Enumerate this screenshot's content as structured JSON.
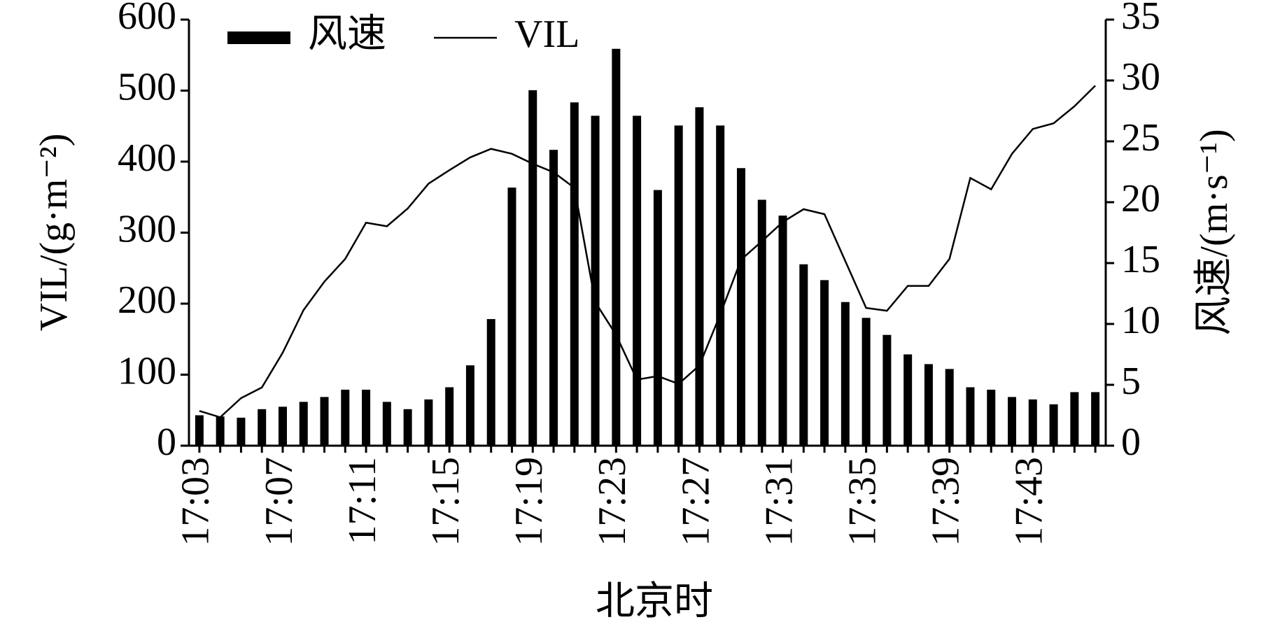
{
  "chart_data": {
    "type": "bar",
    "x_label": "北京时",
    "y_label": "VIL/(g·m⁻²)",
    "y2_label": "风速/(m·s⁻¹)",
    "categories": [
      "17:03",
      null,
      null,
      null,
      "17:07",
      null,
      null,
      null,
      "17:11",
      null,
      null,
      null,
      "17:15",
      null,
      null,
      null,
      "17:19",
      null,
      null,
      null,
      "17:23",
      null,
      null,
      null,
      "17:27",
      null,
      null,
      null,
      "17:31",
      null,
      null,
      null,
      "17:35",
      null,
      null,
      null,
      "17:39",
      null,
      null,
      null,
      "17:43",
      null,
      null,
      null
    ],
    "series": [
      {
        "name": "风速",
        "type": "bar",
        "axis": "y2",
        "color": "#000000",
        "values": [
          2.5,
          2.4,
          2.3,
          3.0,
          3.2,
          3.6,
          4.0,
          4.6,
          4.6,
          3.6,
          3.0,
          3.8,
          4.8,
          6.6,
          10.4,
          21.2,
          29.2,
          24.3,
          28.2,
          27.1,
          32.6,
          27.1,
          21.0,
          26.3,
          27.8,
          26.3,
          22.8,
          20.2,
          18.9,
          14.9,
          13.6,
          11.8,
          10.5,
          9.1,
          7.5,
          6.7,
          6.3,
          4.8,
          4.6,
          4.0,
          3.8,
          3.4,
          4.4,
          4.4
        ]
      },
      {
        "name": "VIL",
        "type": "line",
        "color": "#000000",
        "values": [
          49,
          40,
          67,
          82,
          131,
          191,
          231,
          263,
          314,
          309,
          334,
          369,
          388,
          406,
          418,
          411,
          397,
          385,
          363,
          202,
          156,
          93,
          98,
          87,
          113,
          185,
          262,
          288,
          315,
          333,
          326,
          260,
          194,
          190,
          225,
          225,
          263,
          377,
          361,
          411,
          446,
          454,
          478,
          507
        ]
      }
    ],
    "ylim": [
      0,
      600
    ],
    "yticks": [
      0,
      100,
      200,
      300,
      400,
      500,
      600
    ],
    "y2lim": [
      0,
      35
    ],
    "y2ticks": [
      0,
      5,
      10,
      15,
      20,
      25,
      30,
      35
    ],
    "grid": false,
    "legend": "top left"
  }
}
